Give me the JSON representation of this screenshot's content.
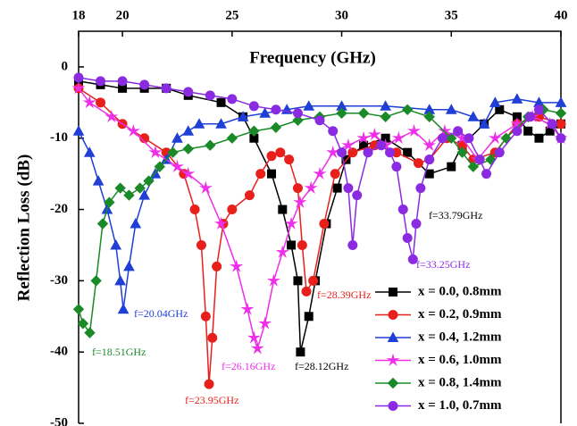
{
  "chart_data": {
    "type": "line",
    "x_label": "Frequency (GHz)",
    "y_label": "Reflection Loss (dB)",
    "xlim": [
      18,
      40
    ],
    "xticks": [
      18,
      20,
      25,
      30,
      35,
      40
    ],
    "ylim": [
      -50,
      5
    ],
    "yticks": [
      0,
      -10,
      -20,
      -30,
      -40,
      -50
    ],
    "legend": "lower right",
    "series": [
      {
        "name": "x = 0.0, 0.8mm",
        "color": "#000000",
        "marker": "square",
        "x": [
          18,
          19,
          20,
          21,
          22,
          23,
          24.5,
          25.5,
          26,
          26.8,
          27.3,
          27.7,
          28.0,
          28.12,
          28.5,
          28.8,
          29.3,
          29.8,
          30.2,
          31,
          32,
          33,
          34,
          35,
          35.5,
          36.5,
          37.2,
          38,
          38.5,
          39,
          39.5,
          40
        ],
        "values": [
          -2,
          -2.5,
          -3,
          -3,
          -3,
          -4,
          -5,
          -7,
          -10,
          -15,
          -20,
          -25,
          -30,
          -40,
          -35,
          -30,
          -22,
          -17,
          -13,
          -11,
          -10,
          -12,
          -15,
          -14,
          -11,
          -8,
          -6,
          -7,
          -9,
          -10,
          -9,
          -8
        ]
      },
      {
        "name": "x = 0.2, 0.9mm",
        "color": "#e8201c",
        "marker": "circle",
        "x": [
          18,
          19,
          20,
          21,
          22,
          22.8,
          23.3,
          23.6,
          23.8,
          23.95,
          24.1,
          24.3,
          24.6,
          25,
          25.8,
          26.3,
          26.8,
          27.2,
          27.6,
          28.0,
          28.2,
          28.39,
          28.7,
          29.2,
          29.7,
          30.5,
          31.5,
          32.5,
          33.5,
          34,
          34.8,
          35.5,
          36,
          37,
          38,
          39,
          40
        ],
        "values": [
          -3,
          -5,
          -8,
          -10,
          -12,
          -15,
          -20,
          -25,
          -35,
          -44.5,
          -38,
          -28,
          -22,
          -20,
          -18,
          -15,
          -12.5,
          -12,
          -13,
          -17,
          -25,
          -31.5,
          -30,
          -22,
          -15,
          -12,
          -11,
          -12,
          -13.5,
          -13,
          -10,
          -11,
          -13,
          -12,
          -8,
          -7,
          -8
        ]
      },
      {
        "name": "x = 0.4, 1.2mm",
        "color": "#1f3fd6",
        "marker": "triangle",
        "x": [
          18,
          18.5,
          18.9,
          19.3,
          19.7,
          19.9,
          20.04,
          20.3,
          20.6,
          21,
          21.5,
          22,
          22.5,
          23,
          23.5,
          24.5,
          25.5,
          26.5,
          27.5,
          28.5,
          30,
          32,
          34,
          35,
          36,
          36.5,
          37,
          38,
          39,
          40
        ],
        "values": [
          -9,
          -12,
          -16,
          -20,
          -25,
          -30,
          -34,
          -28,
          -22,
          -18,
          -15,
          -13,
          -10,
          -9,
          -8,
          -8,
          -7,
          -6.5,
          -6,
          -5.5,
          -5.5,
          -5.5,
          -6,
          -6,
          -7,
          -8,
          -5,
          -4.5,
          -5,
          -5
        ]
      },
      {
        "name": "x = 0.6, 1.0mm",
        "color": "#ee2ee8",
        "marker": "star",
        "x": [
          18,
          18.5,
          19.5,
          20.5,
          21.5,
          22.5,
          23,
          23.8,
          24.5,
          25.2,
          25.7,
          26.0,
          26.16,
          26.5,
          26.9,
          27.3,
          27.7,
          28.1,
          28.6,
          29,
          29.6,
          30.3,
          31,
          31.5,
          32,
          32.6,
          33.3,
          34,
          34.7,
          35.5,
          36.2,
          37,
          38,
          38.7,
          39.5,
          40
        ],
        "values": [
          -3,
          -5,
          -7,
          -9,
          -12,
          -14,
          -15,
          -17,
          -22,
          -28,
          -34,
          -38,
          -39.5,
          -36,
          -30,
          -26,
          -22,
          -19,
          -17,
          -15,
          -12,
          -11,
          -10,
          -9.5,
          -11,
          -10,
          -9,
          -11,
          -9,
          -10,
          -13,
          -10,
          -8,
          -7,
          -8,
          -10
        ]
      },
      {
        "name": "x = 0.8, 1.4mm",
        "color": "#1a8a28",
        "marker": "diamond",
        "x": [
          18,
          18.2,
          18.51,
          18.8,
          19.1,
          19.4,
          19.9,
          20.3,
          20.8,
          21.2,
          21.7,
          22.3,
          23,
          24,
          25,
          26,
          27,
          28,
          29,
          30,
          31,
          32,
          33,
          34,
          35,
          35.5,
          36,
          36.8,
          37.5,
          38.5,
          39.2,
          40
        ],
        "values": [
          -34,
          -36,
          -37.3,
          -30,
          -22,
          -19,
          -17,
          -18,
          -17,
          -16,
          -14,
          -12,
          -11.5,
          -11,
          -10,
          -9,
          -8.5,
          -7.5,
          -7,
          -6.5,
          -6.5,
          -7,
          -6,
          -7,
          -10,
          -12,
          -14,
          -13,
          -10,
          -7,
          -6,
          -6.5
        ]
      },
      {
        "name": "x = 1.0, 0.7mm",
        "color": "#8a2be2",
        "marker": "circle",
        "x": [
          18,
          19,
          20,
          21,
          22,
          23,
          24,
          25,
          26,
          27,
          28,
          29,
          29.6,
          30,
          30.3,
          30.5,
          30.7,
          31.2,
          31.8,
          32.2,
          32.5,
          32.8,
          33.0,
          33.25,
          33.4,
          33.6,
          34,
          34.6,
          35.3,
          35.8,
          36.3,
          36.6,
          37.2,
          38,
          38.6,
          39,
          39.6,
          40
        ],
        "values": [
          -1.5,
          -2,
          -2,
          -2.5,
          -3,
          -3.5,
          -4,
          -4.5,
          -5.5,
          -6,
          -6.5,
          -7.5,
          -9,
          -12,
          -17,
          -25,
          -18,
          -12,
          -11,
          -12,
          -14,
          -20,
          -24,
          -27,
          -22,
          -17,
          -13,
          -10,
          -9,
          -10,
          -13,
          -15,
          -12,
          -9,
          -7,
          -6,
          -8,
          -10
        ]
      }
    ],
    "annotations": [
      "f=18.51GHz",
      "f=20.04GHz",
      "f=23.95GHz",
      "f=26.16GHz",
      "f=28.12GHz",
      "f=28.39GHz",
      "f=33.25GHz",
      "f=33.79GHz"
    ]
  }
}
